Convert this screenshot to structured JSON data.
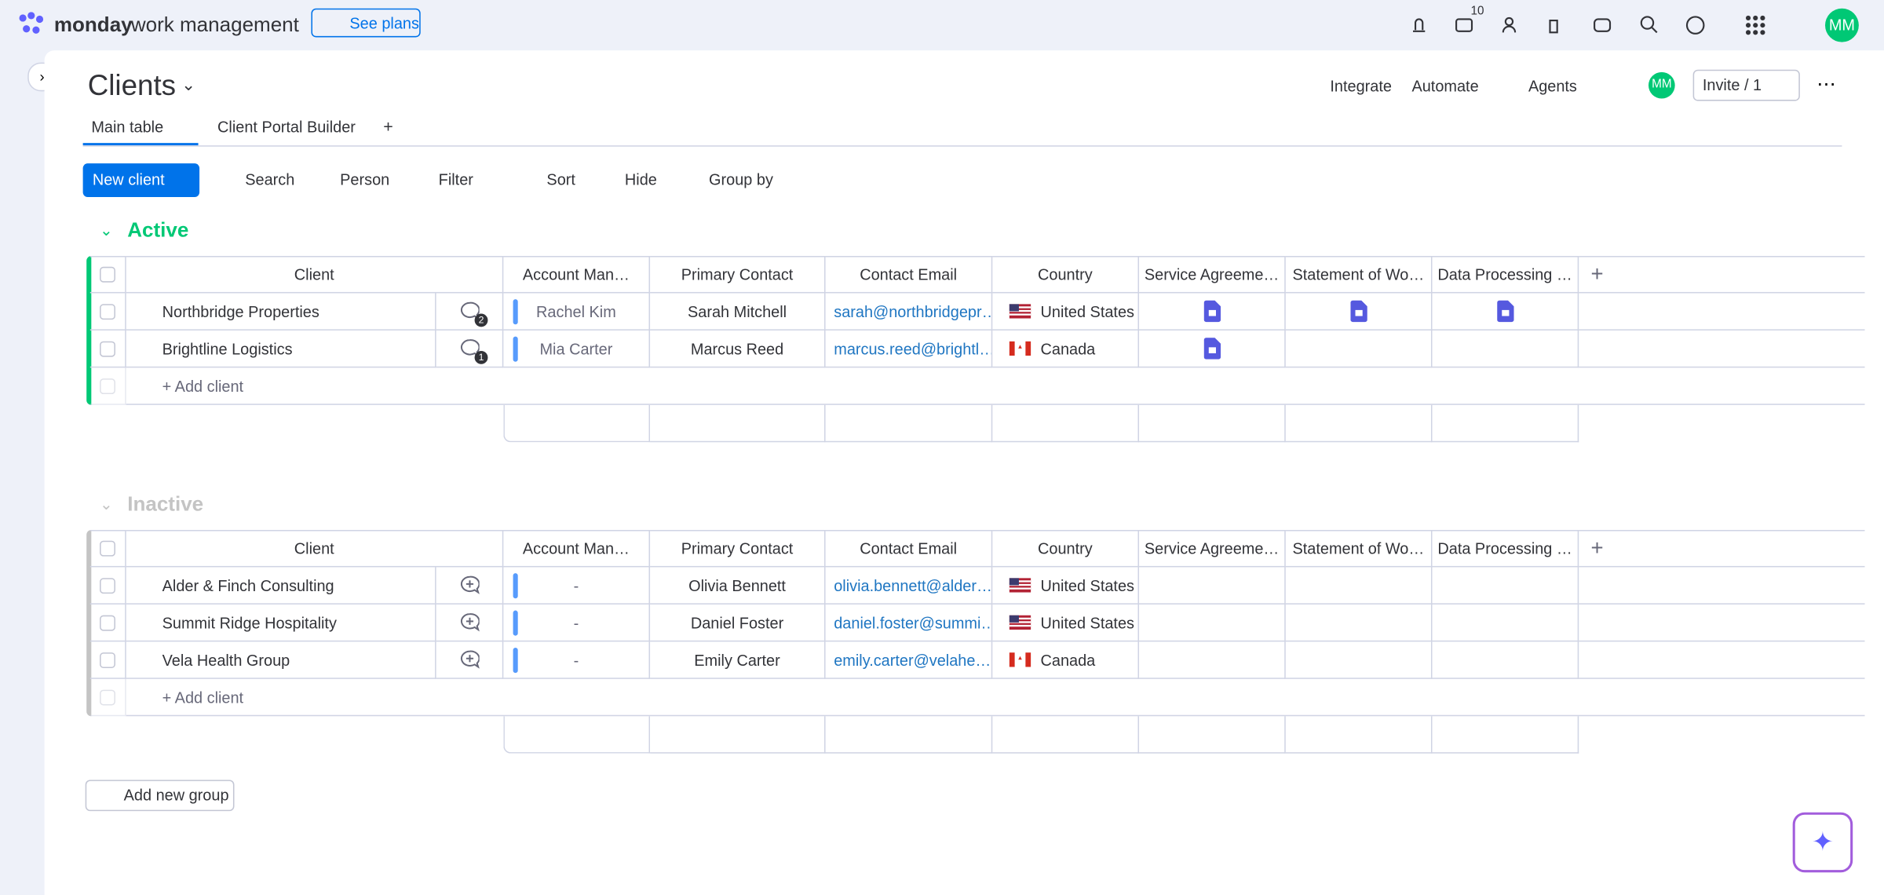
{
  "header": {
    "brand": "monday",
    "product": "work management",
    "see_plans": "See plans",
    "inbox_count": "10",
    "avatar": "MM"
  },
  "board": {
    "title": "Clients",
    "tabs": [
      "Main table",
      "Client Portal Builder"
    ],
    "actions": [
      "Integrate",
      "Automate",
      "Agents"
    ],
    "avatar": "MM",
    "invite": "Invite / 1"
  },
  "toolbar": {
    "new_button": "New client",
    "tools": [
      "Search",
      "Person",
      "Filter",
      "Sort",
      "Hide",
      "Group by"
    ]
  },
  "columns": [
    "Client",
    "Account Man…",
    "Primary Contact",
    "Contact Email",
    "Country",
    "Service Agreeme…",
    "Statement of Wo…",
    "Data Processing …"
  ],
  "groups": [
    {
      "name": "Active",
      "color": "#00c875",
      "name_color": "#00c875",
      "add_row": "+ Add client",
      "rows": [
        {
          "client": "Northbridge Properties",
          "updates": "2",
          "manager": "Rachel Kim",
          "contact": "Sarah Mitchell",
          "email": "sarah@northbridgepr…",
          "country": "United States",
          "flag": "us",
          "docs": [
            true,
            true,
            true
          ]
        },
        {
          "client": "Brightline Logistics",
          "updates": "1",
          "manager": "Mia Carter",
          "contact": "Marcus Reed",
          "email": "marcus.reed@brightl…",
          "country": "Canada",
          "flag": "ca",
          "docs": [
            true,
            false,
            false
          ]
        }
      ]
    },
    {
      "name": "Inactive",
      "color": "#c4c4c4",
      "name_color": "#c4c4c4",
      "add_row": "+ Add client",
      "rows": [
        {
          "client": "Alder & Finch Consulting",
          "manager": "-",
          "contact": "Olivia Bennett",
          "email": "olivia.bennett@alder…",
          "country": "United States",
          "flag": "us",
          "docs": [
            false,
            false,
            false
          ]
        },
        {
          "client": "Summit Ridge Hospitality",
          "manager": "-",
          "contact": "Daniel Foster",
          "email": "daniel.foster@summi…",
          "country": "United States",
          "flag": "us",
          "docs": [
            false,
            false,
            false
          ]
        },
        {
          "client": "Vela Health Group",
          "manager": "-",
          "contact": "Emily Carter",
          "email": "emily.carter@velahe…",
          "country": "Canada",
          "flag": "ca",
          "docs": [
            false,
            false,
            false
          ]
        }
      ]
    }
  ],
  "add_group": "Add new group"
}
